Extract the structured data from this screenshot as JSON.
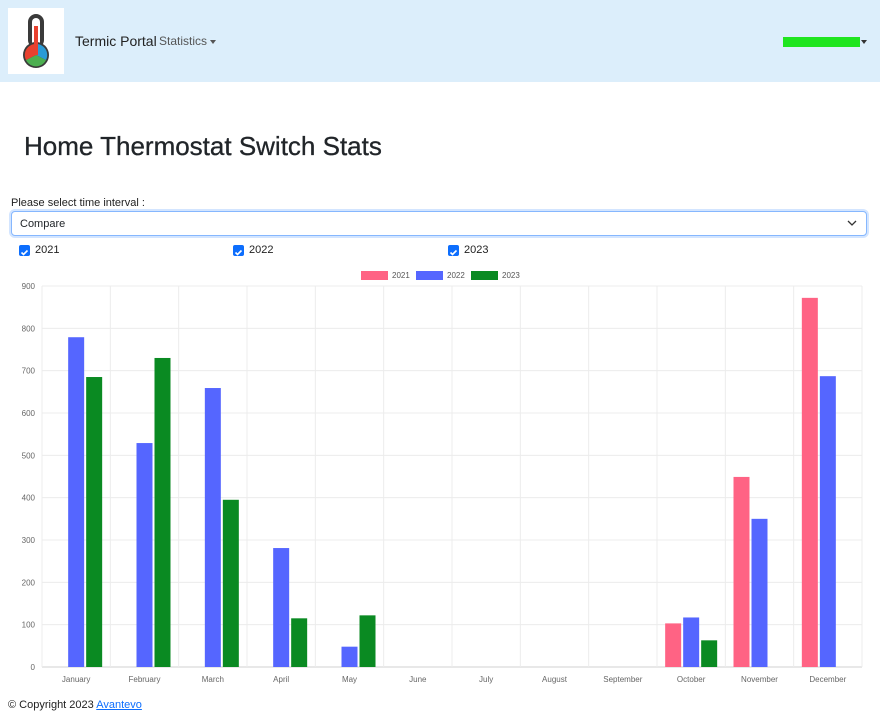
{
  "navbar": {
    "brand": "Termic Portal",
    "menu_statistics": "Statistics"
  },
  "page": {
    "title": "Home Thermostat Switch Stats"
  },
  "interval": {
    "label": "Please select time interval :",
    "selected": "Compare"
  },
  "filters": [
    {
      "label": "2021",
      "checked": true
    },
    {
      "label": "2022",
      "checked": true
    },
    {
      "label": "2023",
      "checked": true
    }
  ],
  "colors": {
    "2021": "#ff6384",
    "2022": "#5566ff",
    "2023": "#0a8a22",
    "accent": "#0d6efd",
    "user_bar": "#1fe51f"
  },
  "chart_data": {
    "type": "bar",
    "categories": [
      "January",
      "February",
      "March",
      "April",
      "May",
      "June",
      "July",
      "August",
      "September",
      "October",
      "November",
      "December"
    ],
    "series": [
      {
        "name": "2021",
        "color": "#ff6384",
        "values": [
          0,
          0,
          0,
          0,
          0,
          0,
          0,
          0,
          0,
          103,
          449,
          872
        ]
      },
      {
        "name": "2022",
        "color": "#5566ff",
        "values": [
          779,
          529,
          659,
          281,
          48,
          0,
          0,
          0,
          0,
          117,
          350,
          687
        ]
      },
      {
        "name": "2023",
        "color": "#0a8a22",
        "values": [
          685,
          730,
          395,
          115,
          122,
          0,
          0,
          0,
          0,
          63,
          0,
          0
        ]
      }
    ],
    "ylim": [
      0,
      900
    ],
    "yticks": [
      "0",
      "100",
      "200",
      "300",
      "400",
      "500",
      "600",
      "700",
      "800",
      "900"
    ],
    "grid": true,
    "legend": "top-center"
  },
  "footer": {
    "copyright": "© Copyright 2023",
    "link": "Avantevo"
  }
}
